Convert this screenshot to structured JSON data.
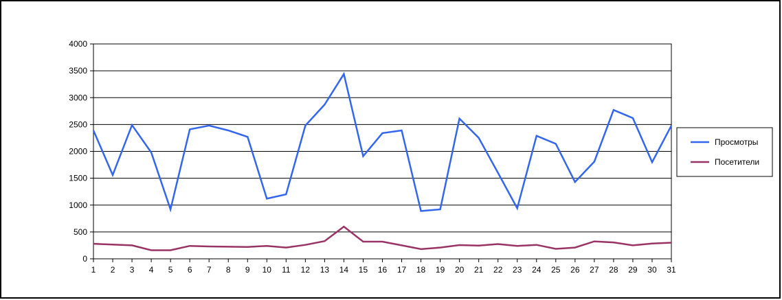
{
  "chart_data": {
    "type": "line",
    "title": "",
    "xlabel": "",
    "ylabel": "",
    "x": [
      1,
      2,
      3,
      4,
      5,
      6,
      7,
      8,
      9,
      10,
      11,
      12,
      13,
      14,
      15,
      16,
      17,
      18,
      19,
      20,
      21,
      22,
      23,
      24,
      25,
      26,
      27,
      28,
      29,
      30,
      31
    ],
    "ylim": [
      0,
      4000
    ],
    "yticks": [
      0,
      500,
      1000,
      1500,
      2000,
      2500,
      3000,
      3500,
      4000
    ],
    "grid": "horizontal",
    "legend": "right",
    "series": [
      {
        "name": "Просмотры",
        "color": "#3366ee",
        "values": [
          2390,
          1560,
          2490,
          1980,
          920,
          2410,
          2480,
          2390,
          2270,
          1120,
          1200,
          2480,
          2870,
          3440,
          1910,
          2340,
          2390,
          890,
          920,
          2610,
          2250,
          1600,
          940,
          2290,
          2140,
          1430,
          1810,
          2770,
          2620,
          1800,
          2480
        ]
      },
      {
        "name": "Посетители",
        "color": "#993366",
        "values": [
          280,
          265,
          250,
          160,
          160,
          240,
          230,
          225,
          220,
          240,
          210,
          260,
          330,
          600,
          320,
          320,
          250,
          180,
          210,
          255,
          245,
          275,
          240,
          260,
          185,
          210,
          325,
          305,
          250,
          285,
          300
        ]
      }
    ]
  }
}
